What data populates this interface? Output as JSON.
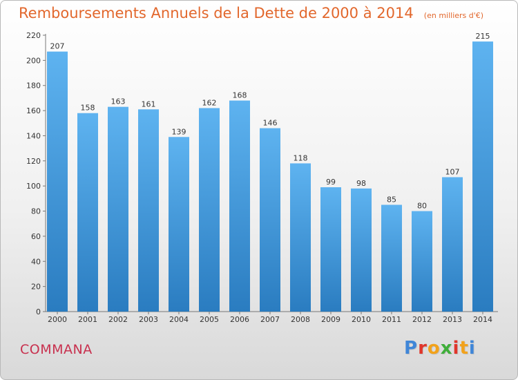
{
  "header": {
    "title": "Remboursements Annuels de la Dette de 2000 à 2014",
    "subtitle": "(en milliers d'€)"
  },
  "footer": {
    "commune": "COMMANA",
    "brand": "Proxiti",
    "brand_colors": [
      "#3f86d8",
      "#e0362b",
      "#f2a21b",
      "#3fae3a",
      "#e0362b",
      "#f2a21b",
      "#3f86d8"
    ]
  },
  "colors": {
    "bar_top": "#5eb3f0",
    "bar_bottom": "#2a7cc0",
    "title": "#e2672c",
    "commune": "#c8304e"
  },
  "chart_data": {
    "type": "bar",
    "categories": [
      "2000",
      "2001",
      "2002",
      "2003",
      "2004",
      "2005",
      "2006",
      "2007",
      "2008",
      "2009",
      "2010",
      "2011",
      "2012",
      "2013",
      "2014"
    ],
    "values": [
      207,
      158,
      163,
      161,
      139,
      162,
      168,
      146,
      118,
      99,
      98,
      85,
      80,
      107,
      215
    ],
    "ylim": [
      0,
      220
    ],
    "yticks": [
      0,
      20,
      40,
      60,
      80,
      100,
      120,
      140,
      160,
      180,
      200,
      220
    ],
    "grid": false,
    "legend": "none"
  }
}
